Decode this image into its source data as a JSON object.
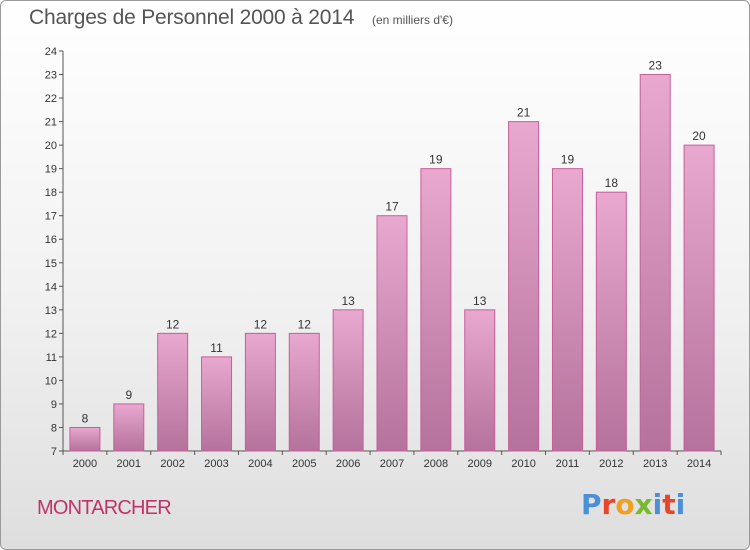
{
  "header": {
    "title": "Charges de Personnel 2000 à 2014",
    "unit": "(en milliers d'€)"
  },
  "footer": {
    "commune": "MONTARCHER",
    "logo_text": "Proxiti"
  },
  "colors": {
    "bar_top": "#e9a8cf",
    "bar_bottom": "#b4729c",
    "bar_stroke": "#c75f98",
    "commune": "#c0336a",
    "logo_letters": [
      "#4a90d9",
      "#e8462a",
      "#f0a020",
      "#7ab82e",
      "#4a90d9",
      "#e8462a",
      "#4a90d9"
    ]
  },
  "chart_data": {
    "type": "bar",
    "title": "Charges de Personnel 2000 à 2014",
    "subtitle": "(en milliers d'€)",
    "categories": [
      "2000",
      "2001",
      "2002",
      "2003",
      "2004",
      "2005",
      "2006",
      "2007",
      "2008",
      "2009",
      "2010",
      "2011",
      "2012",
      "2013",
      "2014"
    ],
    "values": [
      8,
      9,
      12,
      11,
      12,
      12,
      13,
      17,
      19,
      13,
      21,
      19,
      18,
      23,
      20
    ],
    "ylim": [
      7,
      24
    ],
    "yticks": [
      7,
      8,
      9,
      10,
      11,
      12,
      13,
      14,
      15,
      16,
      17,
      18,
      19,
      20,
      21,
      22,
      23,
      24
    ],
    "grid": false,
    "legend": "none"
  }
}
